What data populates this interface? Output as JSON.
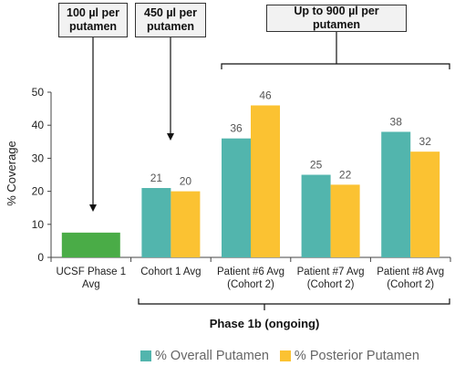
{
  "chart_data": {
    "type": "bar",
    "ylabel": "% Coverage",
    "ylim": [
      0,
      50
    ],
    "yticks": [
      0,
      10,
      20,
      30,
      40,
      50
    ],
    "categories": [
      [
        "UCSF Phase 1",
        "Avg"
      ],
      [
        "Cohort 1 Avg"
      ],
      [
        "Patient #6 Avg",
        "(Cohort 2)"
      ],
      [
        "Patient #7 Avg",
        "(Cohort 2)"
      ],
      [
        "Patient #8 Avg",
        "(Cohort 2)"
      ]
    ],
    "ucsf_bar": {
      "category_index": 0,
      "value": 7.5,
      "color": "#4aac47"
    },
    "series": [
      {
        "name": "% Overall Putamen",
        "color": "#52b5ad",
        "values": [
          null,
          21,
          36,
          25,
          38
        ]
      },
      {
        "name": "% Posterior Putamen",
        "color": "#fbc232",
        "values": [
          null,
          20,
          46,
          22,
          32
        ]
      }
    ],
    "legend_position": "bottom",
    "grid": false
  },
  "annotations": {
    "callout_100": "100 µl per\nputamen",
    "callout_450": "450 µl per\nputamen",
    "callout_900": "Up to 900 µl per putamen",
    "phase_label": "Phase 1b (ongoing)"
  }
}
